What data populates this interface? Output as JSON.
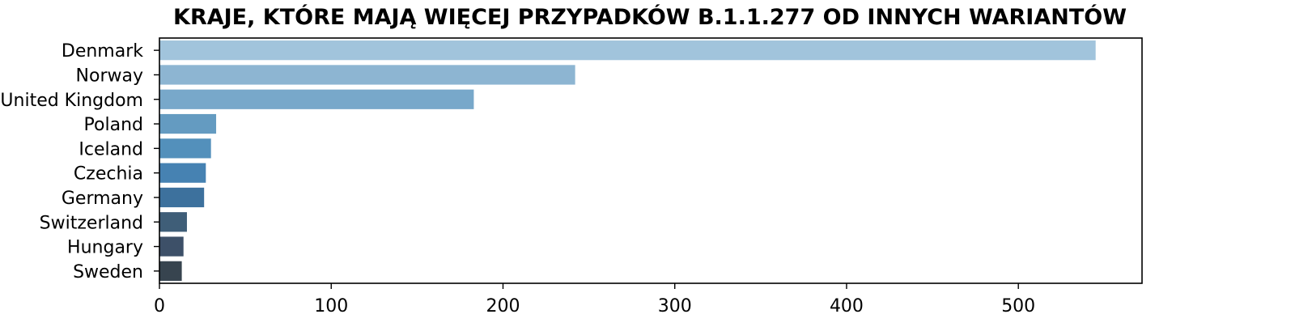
{
  "chart_data": {
    "type": "bar",
    "orientation": "horizontal",
    "title": "KRAJE, KTÓRE MAJĄ WIĘCEJ PRZYPADKÓW B.1.1.277 OD INNYCH WARIANTÓW",
    "xlabel": "",
    "ylabel": "",
    "categories": [
      "Denmark",
      "Norway",
      "United Kingdom",
      "Poland",
      "Iceland",
      "Czechia",
      "Germany",
      "Switzerland",
      "Hungary",
      "Sweden"
    ],
    "values": [
      545,
      242,
      183,
      33,
      30,
      27,
      26,
      16,
      14,
      13
    ],
    "xlim": [
      0,
      572
    ],
    "xticks": [
      0,
      100,
      200,
      300,
      400,
      500
    ],
    "grid": false,
    "legend": "none",
    "colors": [
      "#a1c4dc",
      "#8db5d2",
      "#78a8ca",
      "#649bc1",
      "#5390bb",
      "#4682b2",
      "#3d719d",
      "#3f5e78",
      "#3d5068",
      "#37444f"
    ]
  }
}
